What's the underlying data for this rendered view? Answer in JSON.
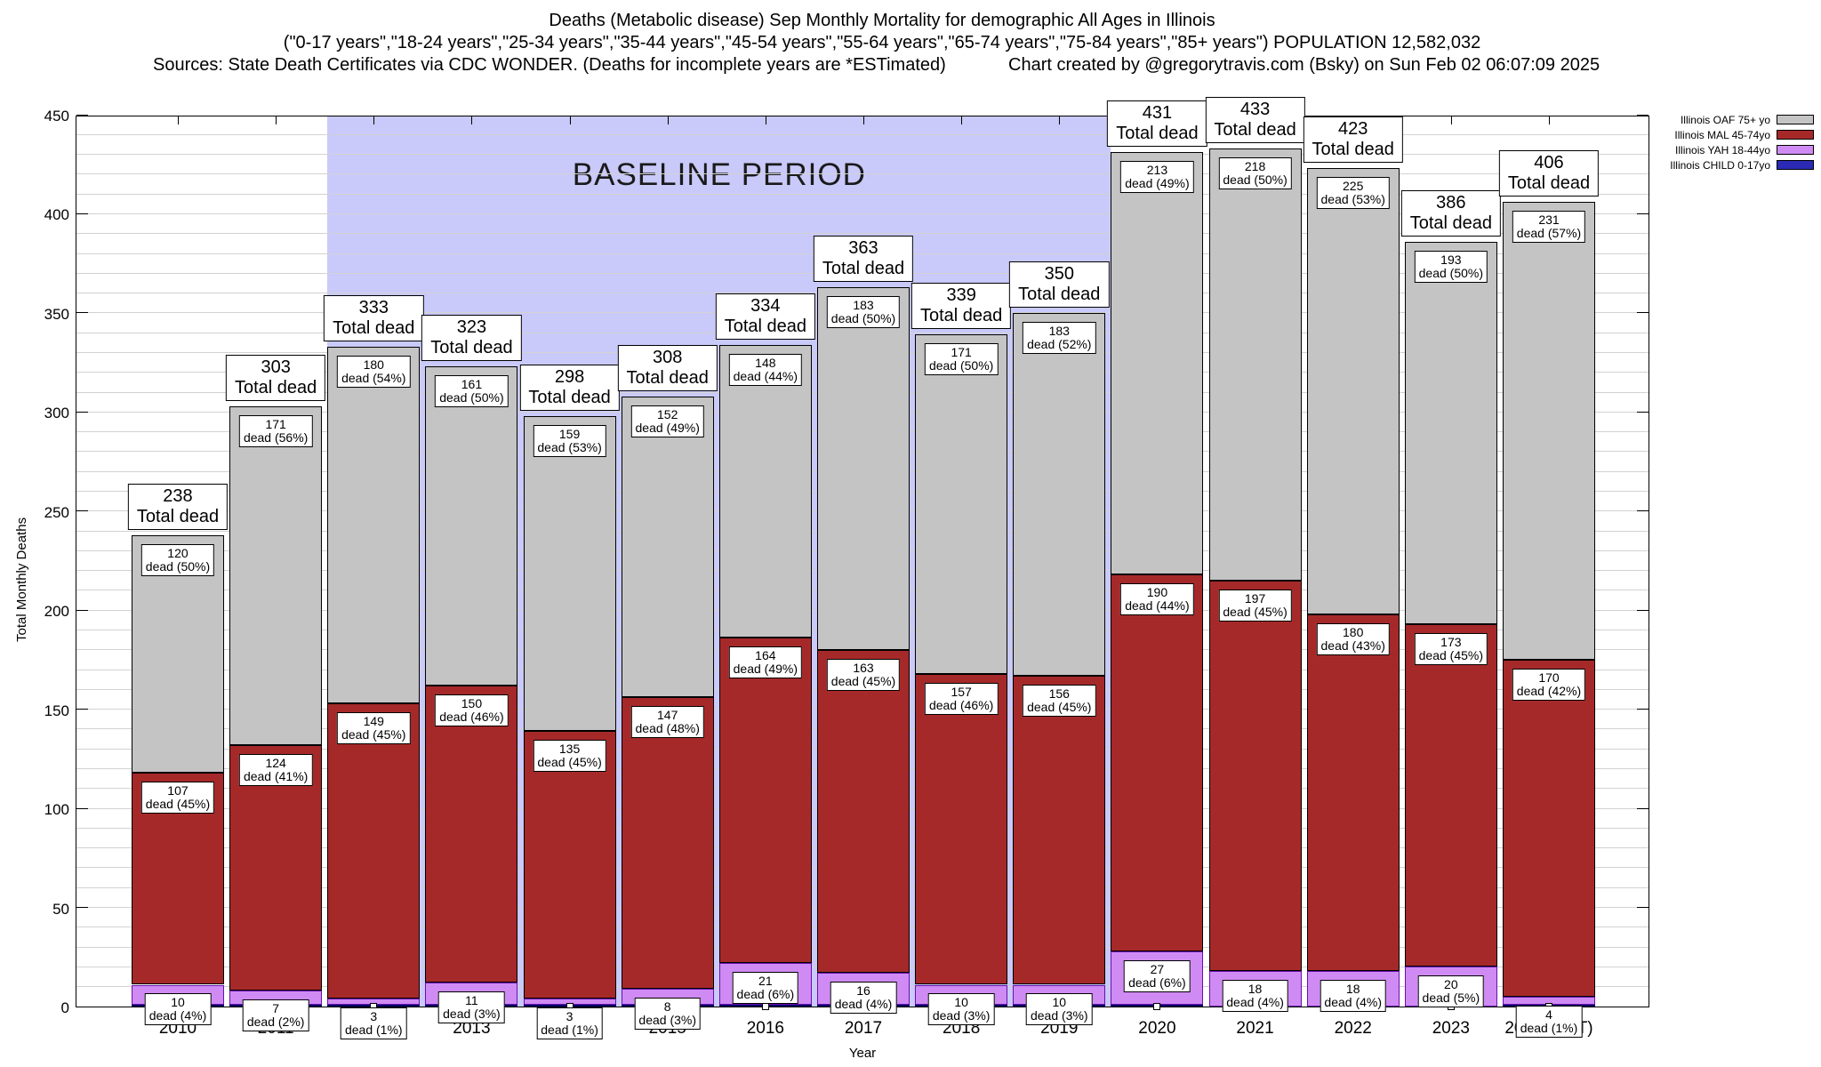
{
  "header": {
    "title_line1": "Deaths (Metabolic disease) Sep Monthly Mortality for demographic All Ages in Illinois",
    "title_line2": "(\"0-17 years\",\"18-24 years\",\"25-34 years\",\"35-44 years\",\"45-54 years\",\"55-64 years\",\"65-74 years\",\"75-84 years\",\"85+ years\") POPULATION 12,582,032",
    "sources": "Sources: State Death Certificates via CDC WONDER. (Deaths for incomplete years are *ESTimated)",
    "credit": "Chart created by @gregorytravis.com (Bsky) on Sun Feb 02 06:07:09 2025"
  },
  "legend": {
    "items": [
      {
        "key": "oaf",
        "label": "Illinois OAF 75+ yo",
        "color": "#c4c4c4"
      },
      {
        "key": "mal",
        "label": "Illinois MAL 45-74yo",
        "color": "#a62929"
      },
      {
        "key": "yah",
        "label": "Illinois YAH 18-44yo",
        "color": "#cf8bf3"
      },
      {
        "key": "child",
        "label": "Illinois CHILD 0-17yo",
        "color": "#2a2ab4"
      }
    ]
  },
  "chart_data": {
    "type": "bar",
    "stacked": true,
    "title": "Deaths (Metabolic disease) Sep Monthly Mortality for demographic All Ages in Illinois",
    "xlabel": "Year",
    "ylabel": "Total Monthly Deaths",
    "ylim": [
      0,
      450
    ],
    "ytick_step": 50,
    "grid_step": 10,
    "grid": true,
    "legend_position": "top-right-outside",
    "total_label": "Total dead",
    "baseline": {
      "label": "BASELINE PERIOD",
      "from_year": "2012",
      "to_year": "2019",
      "color": "#c9c9fa"
    },
    "categories": [
      "2010",
      "2011",
      "2012",
      "2013",
      "2014",
      "2015",
      "2016",
      "2017",
      "2018",
      "2019",
      "2020",
      "2021",
      "2022",
      "2023",
      "2024(*EST)"
    ],
    "totals": [
      238,
      303,
      333,
      323,
      298,
      308,
      334,
      363,
      339,
      350,
      431,
      433,
      423,
      386,
      406
    ],
    "series": [
      {
        "key": "oaf",
        "name": "Illinois OAF 75+ yo",
        "color": "#c4c4c4",
        "border": "#000000",
        "values": [
          120,
          171,
          180,
          161,
          159,
          152,
          148,
          183,
          171,
          183,
          213,
          218,
          225,
          193,
          231
        ],
        "pct_labels": [
          "dead (50%)",
          "dead (56%)",
          "dead (54%)",
          "dead (50%)",
          "dead (53%)",
          "dead (49%)",
          "dead (44%)",
          "dead (50%)",
          "dead (50%)",
          "dead (52%)",
          "dead (49%)",
          "dead (50%)",
          "dead (53%)",
          "dead (50%)",
          "dead (57%)"
        ]
      },
      {
        "key": "mal",
        "name": "Illinois MAL 45-74yo",
        "color": "#a62929",
        "border": "#000000",
        "values": [
          107,
          124,
          149,
          150,
          135,
          147,
          164,
          163,
          157,
          156,
          190,
          197,
          180,
          173,
          170
        ],
        "pct_labels": [
          "dead (45%)",
          "dead (41%)",
          "dead (45%)",
          "dead (46%)",
          "dead (45%)",
          "dead (48%)",
          "dead (49%)",
          "dead (45%)",
          "dead (46%)",
          "dead (45%)",
          "dead (44%)",
          "dead (45%)",
          "dead (43%)",
          "dead (45%)",
          "dead (42%)"
        ]
      },
      {
        "key": "yah",
        "name": "Illinois YAH 18-44yo",
        "color": "#cf8bf3",
        "border": "#6a0fae",
        "values": [
          10,
          7,
          3,
          11,
          3,
          8,
          21,
          16,
          10,
          10,
          27,
          18,
          18,
          20,
          4
        ],
        "pct_labels": [
          "dead (4%)",
          "dead (2%)",
          "dead (1%)",
          "dead (3%)",
          "dead (1%)",
          "dead (3%)",
          "dead (6%)",
          "dead (4%)",
          "dead (3%)",
          "dead (3%)",
          "dead (6%)",
          "dead (4%)",
          "dead (4%)",
          "dead (5%)",
          "dead (1%)"
        ]
      },
      {
        "key": "child",
        "name": "Illinois CHILD 0-17yo",
        "color": "#2a2ab4",
        "border": "#000066",
        "values": [
          1,
          1,
          1,
          1,
          1,
          1,
          1,
          1,
          1,
          1,
          1,
          0,
          0,
          0,
          1
        ],
        "pct_labels": null
      }
    ]
  }
}
